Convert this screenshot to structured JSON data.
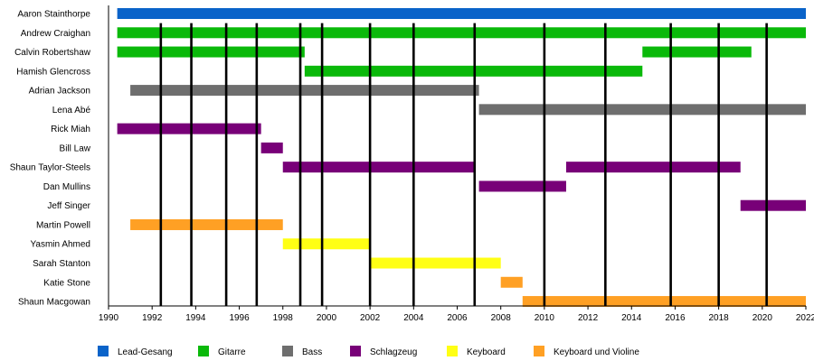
{
  "chart_data": {
    "type": "timeline",
    "title": "",
    "xlabel": "",
    "ylabel": "",
    "xlim": [
      1990,
      2022
    ],
    "x_ticks": [
      1990,
      1992,
      1994,
      1996,
      1998,
      2000,
      2002,
      2004,
      2006,
      2008,
      2010,
      2012,
      2014,
      2016,
      2018,
      2020,
      2022
    ],
    "event_lines": [
      1992.4,
      1993.8,
      1995.4,
      1996.8,
      1998.8,
      1999.8,
      2002.0,
      2004.0,
      2006.8,
      2010.0,
      2012.8,
      2015.8,
      2018.0,
      2020.2
    ],
    "roles": [
      {
        "key": "lead",
        "name": "Lead-Gesang",
        "color": "#0a63c9"
      },
      {
        "key": "guitar",
        "name": "Gitarre",
        "color": "#0ab90a"
      },
      {
        "key": "bass",
        "name": "Bass",
        "color": "#6e6e6e"
      },
      {
        "key": "drums",
        "name": "Schlagzeug",
        "color": "#780078"
      },
      {
        "key": "keys",
        "name": "Keyboard",
        "color": "#ffff14"
      },
      {
        "key": "violin",
        "name": "Keyboard und Violine",
        "color": "#ffa024"
      }
    ],
    "members": [
      {
        "name": "Aaron Stainthorpe",
        "bars": [
          {
            "role": "lead",
            "start": 1990.4,
            "end": 2022
          }
        ]
      },
      {
        "name": "Andrew Craighan",
        "bars": [
          {
            "role": "guitar",
            "start": 1990.4,
            "end": 2022
          }
        ]
      },
      {
        "name": "Calvin Robertshaw",
        "bars": [
          {
            "role": "guitar",
            "start": 1990.4,
            "end": 1999.0
          },
          {
            "role": "guitar",
            "start": 2014.5,
            "end": 2019.5
          }
        ]
      },
      {
        "name": "Hamish Glencross",
        "bars": [
          {
            "role": "guitar",
            "start": 1999.0,
            "end": 2014.5
          }
        ]
      },
      {
        "name": "Adrian Jackson",
        "bars": [
          {
            "role": "bass",
            "start": 1991.0,
            "end": 2007.0
          }
        ]
      },
      {
        "name": "Lena Abé",
        "bars": [
          {
            "role": "bass",
            "start": 2007.0,
            "end": 2022
          }
        ]
      },
      {
        "name": "Rick Miah",
        "bars": [
          {
            "role": "drums",
            "start": 1990.4,
            "end": 1997.0
          }
        ]
      },
      {
        "name": "Bill Law",
        "bars": [
          {
            "role": "drums",
            "start": 1997.0,
            "end": 1998.0
          }
        ]
      },
      {
        "name": "Shaun Taylor-Steels",
        "bars": [
          {
            "role": "drums",
            "start": 1998.0,
            "end": 2006.8
          },
          {
            "role": "drums",
            "start": 2011.0,
            "end": 2019.0
          }
        ]
      },
      {
        "name": "Dan Mullins",
        "bars": [
          {
            "role": "drums",
            "start": 2007.0,
            "end": 2011.0
          }
        ]
      },
      {
        "name": "Jeff Singer",
        "bars": [
          {
            "role": "drums",
            "start": 2019.0,
            "end": 2022
          }
        ]
      },
      {
        "name": "Martin Powell",
        "bars": [
          {
            "role": "violin",
            "start": 1991.0,
            "end": 1998.0
          }
        ]
      },
      {
        "name": "Yasmin Ahmed",
        "bars": [
          {
            "role": "keys",
            "start": 1998.0,
            "end": 2002.0
          }
        ]
      },
      {
        "name": "Sarah Stanton",
        "bars": [
          {
            "role": "keys",
            "start": 2002.0,
            "end": 2008.0
          }
        ]
      },
      {
        "name": "Katie Stone",
        "bars": [
          {
            "role": "violin",
            "start": 2008.0,
            "end": 2009.0
          }
        ]
      },
      {
        "name": "Shaun Macgowan",
        "bars": [
          {
            "role": "violin",
            "start": 2009.0,
            "end": 2022
          }
        ]
      }
    ]
  }
}
